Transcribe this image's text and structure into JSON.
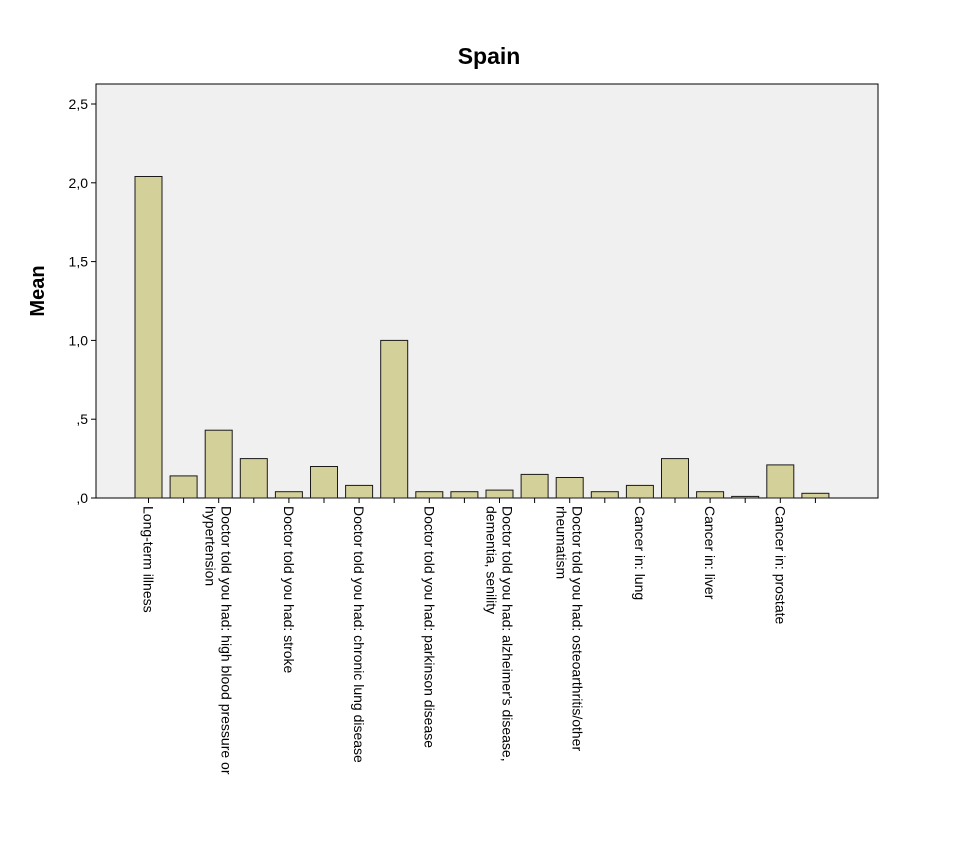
{
  "chart_data": {
    "type": "bar",
    "title": "Spain",
    "xlabel": "",
    "ylabel": "Mean",
    "ylim": [
      0,
      2.5
    ],
    "yticks": [
      {
        "value": 0,
        "label": ",0"
      },
      {
        "value": 0.5,
        "label": ",5"
      },
      {
        "value": 1.0,
        "label": "1,0"
      },
      {
        "value": 1.5,
        "label": "1,5"
      },
      {
        "value": 2.0,
        "label": "2,0"
      },
      {
        "value": 2.5,
        "label": "2,5"
      }
    ],
    "categories": [
      "Long-term illness",
      "",
      "Doctor told you had: high blood pressure or hypertension",
      "",
      "Doctor told you had: stroke",
      "",
      "Doctor told you had: chronic lung disease",
      "",
      "Doctor told you had: parkinson disease",
      "",
      "Doctor told you had: alzheimer's disease, dementia, senility",
      "",
      "Doctor told you had: osteoarthritis/other rheumatism",
      "",
      "Cancer in: lung",
      "",
      "Cancer in: liver",
      "",
      "Cancer in: prostate",
      ""
    ],
    "category_label_lines": [
      [
        "Long-term illness"
      ],
      [],
      [
        "Doctor told you had: high blood pressure or",
        "hypertension"
      ],
      [],
      [
        "Doctor told you had: stroke"
      ],
      [],
      [
        "Doctor told you had: chronic lung disease"
      ],
      [],
      [
        "Doctor told you had: parkinson disease"
      ],
      [],
      [
        "Doctor told you had: alzheimer's disease,",
        "dementia, senility"
      ],
      [],
      [
        "Doctor told you had: osteoarthritis/other",
        "rheumatism"
      ],
      [],
      [
        "Cancer in: lung"
      ],
      [],
      [
        "Cancer in: liver"
      ],
      [],
      [
        "Cancer in: prostate"
      ],
      []
    ],
    "values": [
      2.04,
      0.14,
      0.43,
      0.25,
      0.04,
      0.2,
      0.08,
      1.0,
      0.04,
      0.04,
      0.05,
      0.15,
      0.13,
      0.04,
      0.08,
      0.25,
      0.04,
      0.01,
      0.21,
      0.03
    ],
    "grid": false,
    "legend": "none",
    "colors": {
      "bar_fill": "#d4d09a",
      "bar_stroke": "#1a1a1a",
      "plot_background": "#f0f0f0",
      "axis": "#000000"
    }
  }
}
